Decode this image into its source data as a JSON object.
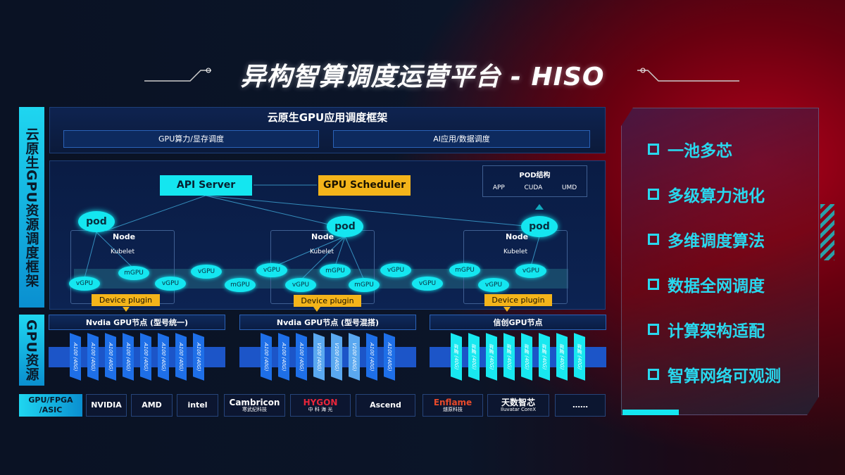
{
  "title": "异构智算调度运营平台 - HISO",
  "left_labels": {
    "top": "云原生GPU资源调度框架",
    "bottom": "GPU资源"
  },
  "framework": {
    "title": "云原生GPU应用调度框架",
    "left": "GPU算力/显存调度",
    "right": "AI应用/数据调度"
  },
  "api_server": "API Server",
  "gpu_scheduler": "GPU Scheduler",
  "pod_struct": {
    "title": "POD结构",
    "items": [
      "APP",
      "CUDA",
      "UMD"
    ]
  },
  "pod_label": "pod",
  "node_label": "Node",
  "kubelet_label": "Kubelet",
  "device_plugin": "Device plugin",
  "units": [
    "vGPU",
    "mGPU",
    "vGPU",
    "vGPU",
    "mGPU",
    "vGPU",
    "vGPU",
    "mGPU",
    "mGPU",
    "vGPU",
    "vGPU",
    "mGPU",
    "vGPU",
    "vGPU"
  ],
  "gpu_nodes": [
    {
      "title": "Nvdia GPU节点 (型号统一)",
      "cards": [
        "A100 (40G)",
        "A100 (40G)",
        "A100 (40G)",
        "A100 (40G)",
        "A100 (40G)",
        "A100 (40G)",
        "A100 (40G)",
        "A100 (40G)"
      ]
    },
    {
      "title": "Nvdia GPU节点 (型号混搭)",
      "cards": [
        "A100 (40G)",
        "A100 (40G)",
        "A100 (40G)",
        "V100 (40G)",
        "V100 (40G)",
        "V100 (40G)",
        "A100 (40G)",
        "A100 (40G)"
      ]
    },
    {
      "title": "信创GPU节点",
      "cards": [
        "昇腾 (40G)",
        "昇腾 (40G)",
        "昇腾 (40G)",
        "昇腾 (40G)",
        "昇腾 (40G)",
        "昇腾 (40G)",
        "昇腾 (40G)",
        "昇腾 (40G)"
      ]
    }
  ],
  "chip_label": "GPU/FPGA /ASIC",
  "vendors": [
    {
      "name": "NVIDIA"
    },
    {
      "name": "AMD"
    },
    {
      "name": "intel"
    },
    {
      "name": "Cambricon",
      "sub": "寒武纪科技"
    },
    {
      "name": "HYGON",
      "sub": "中 科 海 光"
    },
    {
      "name": "Ascend"
    },
    {
      "name": "Enflame",
      "sub": "燧原科技"
    },
    {
      "name": "天数智芯",
      "sub": "Iluvatar CoreX"
    },
    {
      "name": "……"
    }
  ],
  "features": [
    "一池多芯",
    "多级算力池化",
    "多维调度算法",
    "数据全网调度",
    "计算架构适配",
    "智算网络可观测"
  ],
  "colors": {
    "cyan": "#14e6f0",
    "orange": "#f4b41a",
    "navy": "#0b1a3a",
    "red": "#b0001a"
  }
}
